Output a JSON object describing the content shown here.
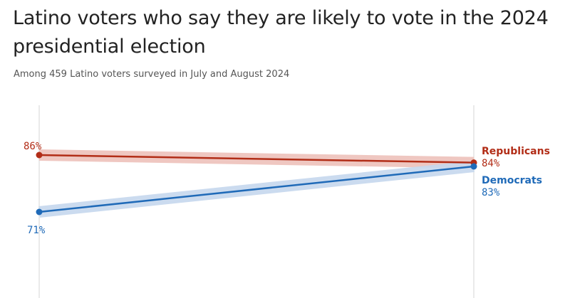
{
  "chart_data": {
    "type": "line",
    "title": "Latino voters who say they are likely to vote in the 2024 presidential election",
    "subtitle": "Among 459 Latino voters surveyed in July and August 2024",
    "x": [
      "",
      ""
    ],
    "ylim": [
      60,
      100
    ],
    "grid": false,
    "series": [
      {
        "name": "Republicans",
        "values": [
          86,
          84
        ],
        "start_label": "86%",
        "end_label": "84%",
        "color": "#b22d17",
        "band_color": "#eec2bb"
      },
      {
        "name": "Democrats",
        "values": [
          71,
          83
        ],
        "start_label": "71%",
        "end_label": "83%",
        "color": "#1f6ab8",
        "band_color": "#c6d8ee"
      }
    ]
  }
}
